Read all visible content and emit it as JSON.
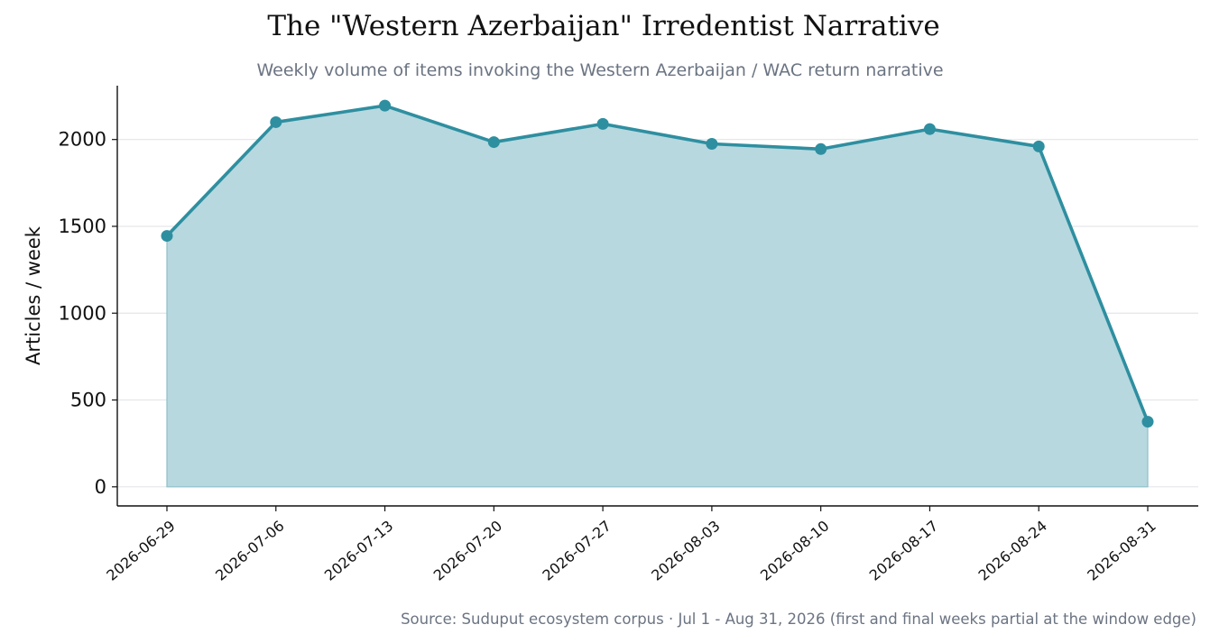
{
  "chart_data": {
    "type": "area",
    "title": "The \"Western Azerbaijan\" Irredentist Narrative",
    "subtitle": "Weekly volume of items invoking the Western Azerbaijan / WAC return narrative",
    "xlabel": "",
    "ylabel": "Articles / week",
    "x": [
      "2026-06-29",
      "2026-07-06",
      "2026-07-13",
      "2026-07-20",
      "2026-07-27",
      "2026-08-03",
      "2026-08-10",
      "2026-08-17",
      "2026-08-24",
      "2026-08-31"
    ],
    "series": [
      {
        "values": [
          1445,
          2100,
          2195,
          1985,
          2090,
          1975,
          1945,
          2060,
          1960,
          375
        ]
      }
    ],
    "y_ticks": [
      "0",
      "500",
      "1000",
      "1500",
      "2000"
    ],
    "ylim": [
      -110,
      2310
    ],
    "grid": "horizontal",
    "source_note": "Source: Suduput ecosystem corpus · Jul 1 - Aug 31, 2026  (first and final weeks partial at the window edge)",
    "colors": {
      "line": "#2e8fa0",
      "fill": "#b7d8df",
      "grid": "#e3e6ea",
      "axis": "#111111"
    }
  }
}
